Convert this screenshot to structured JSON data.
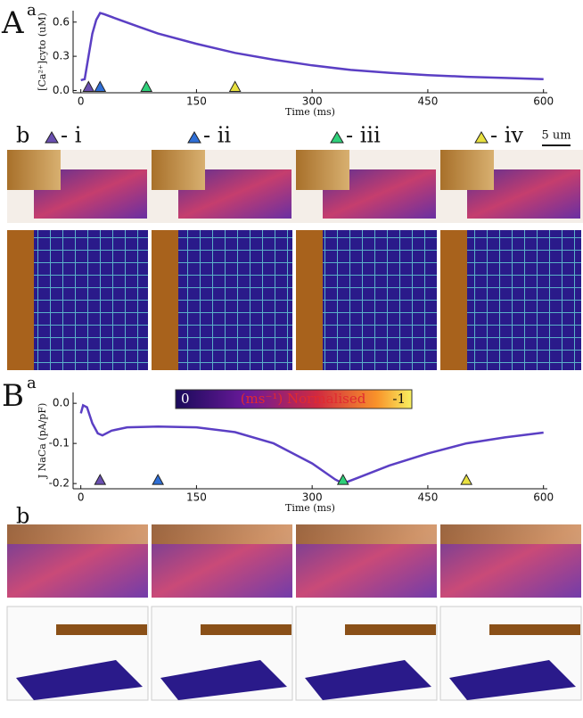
{
  "chart_data": [
    {
      "type": "line",
      "x_label": "Time (ms)",
      "y_label": "[Ca²⁺]cyto (uM)",
      "x": [
        0,
        5,
        10,
        15,
        20,
        25,
        30,
        50,
        75,
        100,
        150,
        200,
        250,
        300,
        350,
        400,
        450,
        500,
        550,
        600
      ],
      "series": [
        {
          "color": "#5b3fc4",
          "values": [
            0.09,
            0.1,
            0.3,
            0.5,
            0.62,
            0.68,
            0.67,
            0.62,
            0.56,
            0.5,
            0.41,
            0.33,
            0.27,
            0.22,
            0.18,
            0.155,
            0.135,
            0.12,
            0.11,
            0.1
          ]
        }
      ],
      "xlim": [
        -10,
        605
      ],
      "ylim": [
        -0.02,
        0.7
      ],
      "xticks": [
        0,
        150,
        300,
        450,
        600
      ],
      "yticks": [
        {
          "value": 0,
          "label": "0.0"
        },
        0.3,
        0.6
      ],
      "markers": {
        "x": [
          10,
          25,
          85,
          200
        ],
        "y": [
          0,
          0,
          0,
          0
        ],
        "colors": [
          "#6a4fb0",
          "#2f6fd6",
          "#2fd07a",
          "#e8e040"
        ]
      }
    },
    {
      "type": "line",
      "x_label": "Time (ms)",
      "y_label": "J NaCa (pA/pF)",
      "x": [
        0,
        3,
        8,
        15,
        22,
        28,
        40,
        60,
        100,
        150,
        200,
        250,
        300,
        330,
        340,
        360,
        400,
        450,
        500,
        550,
        600
      ],
      "series": [
        {
          "color": "#5b3fc4",
          "values": [
            -0.025,
            -0.005,
            -0.01,
            -0.05,
            -0.075,
            -0.08,
            -0.068,
            -0.06,
            -0.058,
            -0.06,
            -0.072,
            -0.1,
            -0.15,
            -0.19,
            -0.2,
            -0.185,
            -0.155,
            -0.125,
            -0.1,
            -0.085,
            -0.073
          ]
        }
      ],
      "xlim": [
        -10,
        605
      ],
      "ylim": [
        -0.213,
        0.027
      ],
      "xticks": [
        0,
        150,
        300,
        450,
        600
      ],
      "yticks": [
        {
          "value": 0,
          "label": "0.0"
        },
        -0.1,
        -0.2
      ],
      "markers": {
        "x": [
          25,
          100,
          340,
          500
        ],
        "y": [
          -0.2,
          -0.2,
          -0.2,
          -0.2
        ],
        "colors": [
          "#6a4fb0",
          "#2f6fd6",
          "#2fd07a",
          "#e8e040"
        ]
      }
    }
  ],
  "labels": {
    "panel_a": "A",
    "panel_a_sub": "a",
    "panel_a_b": "b",
    "panel_b": "B",
    "panel_b_sub": "a",
    "panel_b_b": "b",
    "romans": [
      "- i",
      "- ii",
      "- iii",
      "- iv"
    ],
    "scale_bar": "5 um",
    "colorbar": {
      "low": "0",
      "middle": "(ms⁻¹) Normalised",
      "high": "-1"
    }
  }
}
